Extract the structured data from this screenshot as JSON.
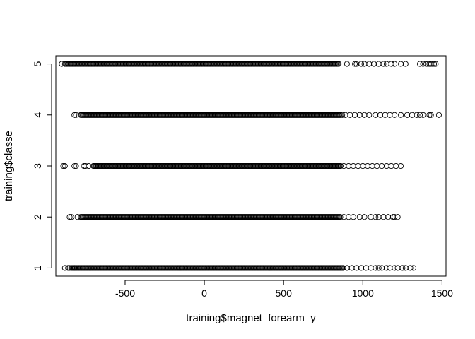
{
  "chart_data": {
    "type": "scatter",
    "title": "",
    "xlabel": "training$magnet_forearm_y",
    "ylabel": "training$classe",
    "xlim": [
      -937,
      1525
    ],
    "ylim": [
      0.84,
      5.16
    ],
    "x_ticks": [
      -500,
      0,
      500,
      1000,
      1500
    ],
    "x_tick_labels": [
      "-500",
      "0",
      "500",
      "1000",
      "1500"
    ],
    "y_ticks": [
      1,
      2,
      3,
      4,
      5
    ],
    "y_tick_labels": [
      "1",
      "2",
      "3",
      "4",
      "5"
    ],
    "grid": false,
    "legend": "none",
    "marker": "open-circle",
    "point_color": "#000000",
    "classes": [
      {
        "y": 1,
        "dense_range": [
          -840,
          880
        ],
        "extra_x": [
          -880,
          -860,
          -850,
          -820,
          900,
          930,
          960,
          990,
          1020,
          1050,
          1080,
          1100,
          1120,
          1150,
          1170,
          1200,
          1220,
          1250,
          1270,
          1300,
          1320
        ]
      },
      {
        "y": 2,
        "dense_range": [
          -780,
          860
        ],
        "extra_x": [
          -850,
          -840,
          -800,
          880,
          910,
          940,
          980,
          1010,
          1050,
          1080,
          1100,
          1130,
          1160,
          1190,
          1200,
          1220
        ]
      },
      {
        "y": 3,
        "dense_range": [
          -700,
          860
        ],
        "extra_x": [
          -890,
          -880,
          -820,
          -810,
          -760,
          -750,
          -730,
          880,
          910,
          940,
          970,
          1000,
          1030,
          1060,
          1090,
          1120,
          1150,
          1180,
          1210,
          1240
        ]
      },
      {
        "y": 4,
        "dense_range": [
          -780,
          860
        ],
        "extra_x": [
          -820,
          -810,
          870,
          890,
          920,
          950,
          980,
          1010,
          1040,
          1080,
          1110,
          1140,
          1170,
          1200,
          1240,
          1280,
          1310,
          1340,
          1360,
          1380,
          1420,
          1430,
          1480
        ]
      },
      {
        "y": 5,
        "dense_range": [
          -880,
          850
        ],
        "extra_x": [
          -900,
          900,
          950,
          960,
          990,
          1010,
          1040,
          1070,
          1100,
          1130,
          1150,
          1180,
          1200,
          1240,
          1270,
          1360,
          1380,
          1400,
          1410,
          1420,
          1430,
          1440,
          1450,
          1460
        ]
      }
    ]
  }
}
